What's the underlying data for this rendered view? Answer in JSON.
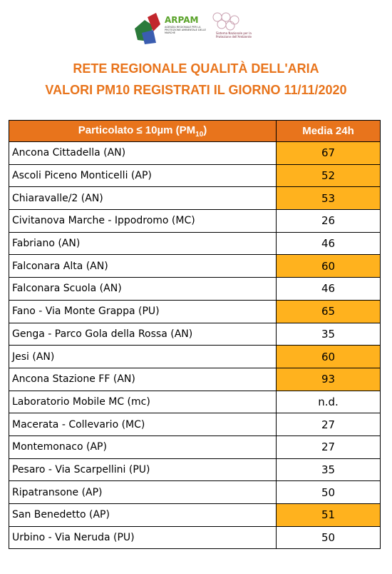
{
  "header": {
    "logo_title": "ARPAM",
    "logo_subtitle": "AGENZIA REGIONALE PER LA PROTEZIONE AMBIENTALE DELLE MARCHE",
    "logo2_text": "Sistema Nazionale per la Protezione dell'Ambiente",
    "title": "RETE REGIONALE QUALITÀ DELL'ARIA",
    "subtitle": "VALORI PM10 REGISTRATI IL GIORNO 11/11/2020"
  },
  "table": {
    "columns": [
      {
        "text": "Particolato ≤ 10µm (PM",
        "sub": "10",
        "tail": ")"
      },
      {
        "text": "Media 24h"
      }
    ],
    "highlight_color": "#ffb21e",
    "header_color": "#e8741c",
    "rows": [
      {
        "station": "Ancona Cittadella (AN)",
        "value": 67,
        "exceeds": true
      },
      {
        "station": "Ascoli Piceno Monticelli (AP)",
        "value": 52,
        "exceeds": true
      },
      {
        "station": "Chiaravalle/2 (AN)",
        "value": 53,
        "exceeds": true
      },
      {
        "station": "Civitanova Marche - Ippodromo (MC)",
        "value": 26,
        "exceeds": false
      },
      {
        "station": "Fabriano (AN)",
        "value": 46,
        "exceeds": false
      },
      {
        "station": "Falconara Alta (AN)",
        "value": 60,
        "exceeds": true
      },
      {
        "station": "Falconara Scuola (AN)",
        "value": 46,
        "exceeds": false
      },
      {
        "station": "Fano - Via Monte Grappa (PU)",
        "value": 65,
        "exceeds": true
      },
      {
        "station": "Genga - Parco Gola della Rossa (AN)",
        "value": 35,
        "exceeds": false
      },
      {
        "station": "Jesi (AN)",
        "value": 60,
        "exceeds": true
      },
      {
        "station": "Ancona Stazione FF (AN)",
        "value": 93,
        "exceeds": true
      },
      {
        "station": "Laboratorio Mobile MC (mc)",
        "value": "n.d.",
        "exceeds": false
      },
      {
        "station": "Macerata - Collevario (MC)",
        "value": 27,
        "exceeds": false
      },
      {
        "station": "Montemonaco (AP)",
        "value": 27,
        "exceeds": false
      },
      {
        "station": "Pesaro - Via Scarpellini (PU)",
        "value": 35,
        "exceeds": false
      },
      {
        "station": "Ripatransone (AP)",
        "value": 50,
        "exceeds": false
      },
      {
        "station": "San Benedetto (AP)",
        "value": 51,
        "exceeds": true
      },
      {
        "station": "Urbino - Via Neruda (PU)",
        "value": 50,
        "exceeds": false
      }
    ]
  }
}
